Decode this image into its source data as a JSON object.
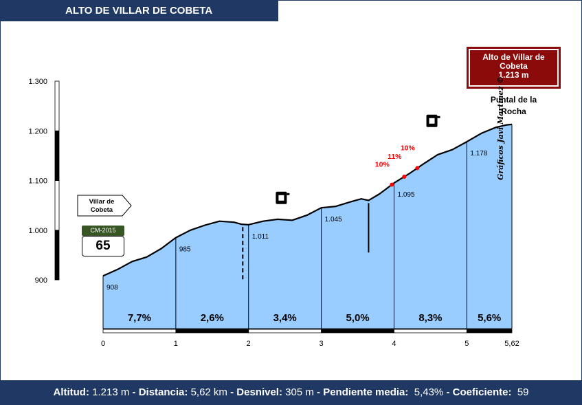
{
  "title": "ALTO DE VILLAR DE COBETA",
  "summit_badge": {
    "line1": "Alto de Villar de",
    "line2": "Cobeta",
    "line3": "1.213 m"
  },
  "summit_name": {
    "line1": "Puntal de la",
    "line2": "Rocha"
  },
  "start_sign": {
    "line1": "Villar de",
    "line2": "Cobeta"
  },
  "road": {
    "code": "CM-2015",
    "number": "65"
  },
  "credit": "Gráficos Javi Martínez ©",
  "footer": {
    "altitud_label": "Altitud:",
    "altitud_value": "1.213 m",
    "distancia_label": "Distancia:",
    "distancia_value": "5,62 km",
    "desnivel_label": "Desnivel:",
    "desnivel_value": "305 m",
    "pendiente_label": "Pendiente media:",
    "pendiente_value": "5,43%",
    "coef_label": "Coeficiente:",
    "coef_value": "59",
    "sep": " - "
  },
  "chart_data": {
    "type": "area",
    "xlim": [
      0,
      5.62
    ],
    "ylim": [
      900,
      1300
    ],
    "y_ticks": [
      "900",
      "1.000",
      "1.100",
      "1.200",
      "1.300"
    ],
    "y_tick_values": [
      900,
      1000,
      1100,
      1200,
      1300
    ],
    "x_ticks": [
      "0",
      "1",
      "2",
      "3",
      "4",
      "5",
      "5,62"
    ],
    "x_tick_values": [
      0,
      1,
      2,
      3,
      4,
      5,
      5.62
    ],
    "fill_color": "#99ccff",
    "profile": [
      [
        0,
        908
      ],
      [
        0.2,
        921
      ],
      [
        0.4,
        937
      ],
      [
        0.6,
        946
      ],
      [
        0.8,
        963
      ],
      [
        1,
        985
      ],
      [
        1.2,
        1000
      ],
      [
        1.4,
        1010
      ],
      [
        1.6,
        1018
      ],
      [
        1.8,
        1016
      ],
      [
        1.9,
        1012
      ],
      [
        2,
        1011
      ],
      [
        2.2,
        1018
      ],
      [
        2.4,
        1022
      ],
      [
        2.6,
        1020
      ],
      [
        2.8,
        1030
      ],
      [
        3,
        1045
      ],
      [
        3.2,
        1048
      ],
      [
        3.4,
        1057
      ],
      [
        3.55,
        1063
      ],
      [
        3.65,
        1060
      ],
      [
        3.8,
        1073
      ],
      [
        4,
        1095
      ],
      [
        4.2,
        1113
      ],
      [
        4.4,
        1133
      ],
      [
        4.6,
        1152
      ],
      [
        4.8,
        1162
      ],
      [
        5,
        1178
      ],
      [
        5.2,
        1195
      ],
      [
        5.4,
        1207
      ],
      [
        5.55,
        1212
      ],
      [
        5.62,
        1213
      ]
    ],
    "km_altitudes": [
      {
        "x": 0,
        "label": "908"
      },
      {
        "x": 1,
        "label": "985"
      },
      {
        "x": 2,
        "label": "1.011"
      },
      {
        "x": 3,
        "label": "1.045"
      },
      {
        "x": 4,
        "label": "1.095"
      },
      {
        "x": 5,
        "label": "1.178"
      }
    ],
    "segment_gradients": [
      "7,7%",
      "2,6%",
      "3,4%",
      "5,0%",
      "8,3%",
      "5,6%"
    ],
    "max_gradients": [
      {
        "x": 3.97,
        "label": "10%"
      },
      {
        "x": 4.14,
        "label": "11%"
      },
      {
        "x": 4.32,
        "label": "10%"
      }
    ],
    "max_gradient_color": "#ff0000",
    "junctions": [
      {
        "x": 1.92,
        "to": 900,
        "style": "dashed"
      },
      {
        "x": 3.65,
        "to": 955,
        "style": "solid"
      }
    ],
    "icons": [
      {
        "name": "fountain-icon",
        "x": 2.45,
        "y": 1065
      },
      {
        "name": "fountain-icon",
        "x": 4.52,
        "y": 1220
      }
    ]
  }
}
